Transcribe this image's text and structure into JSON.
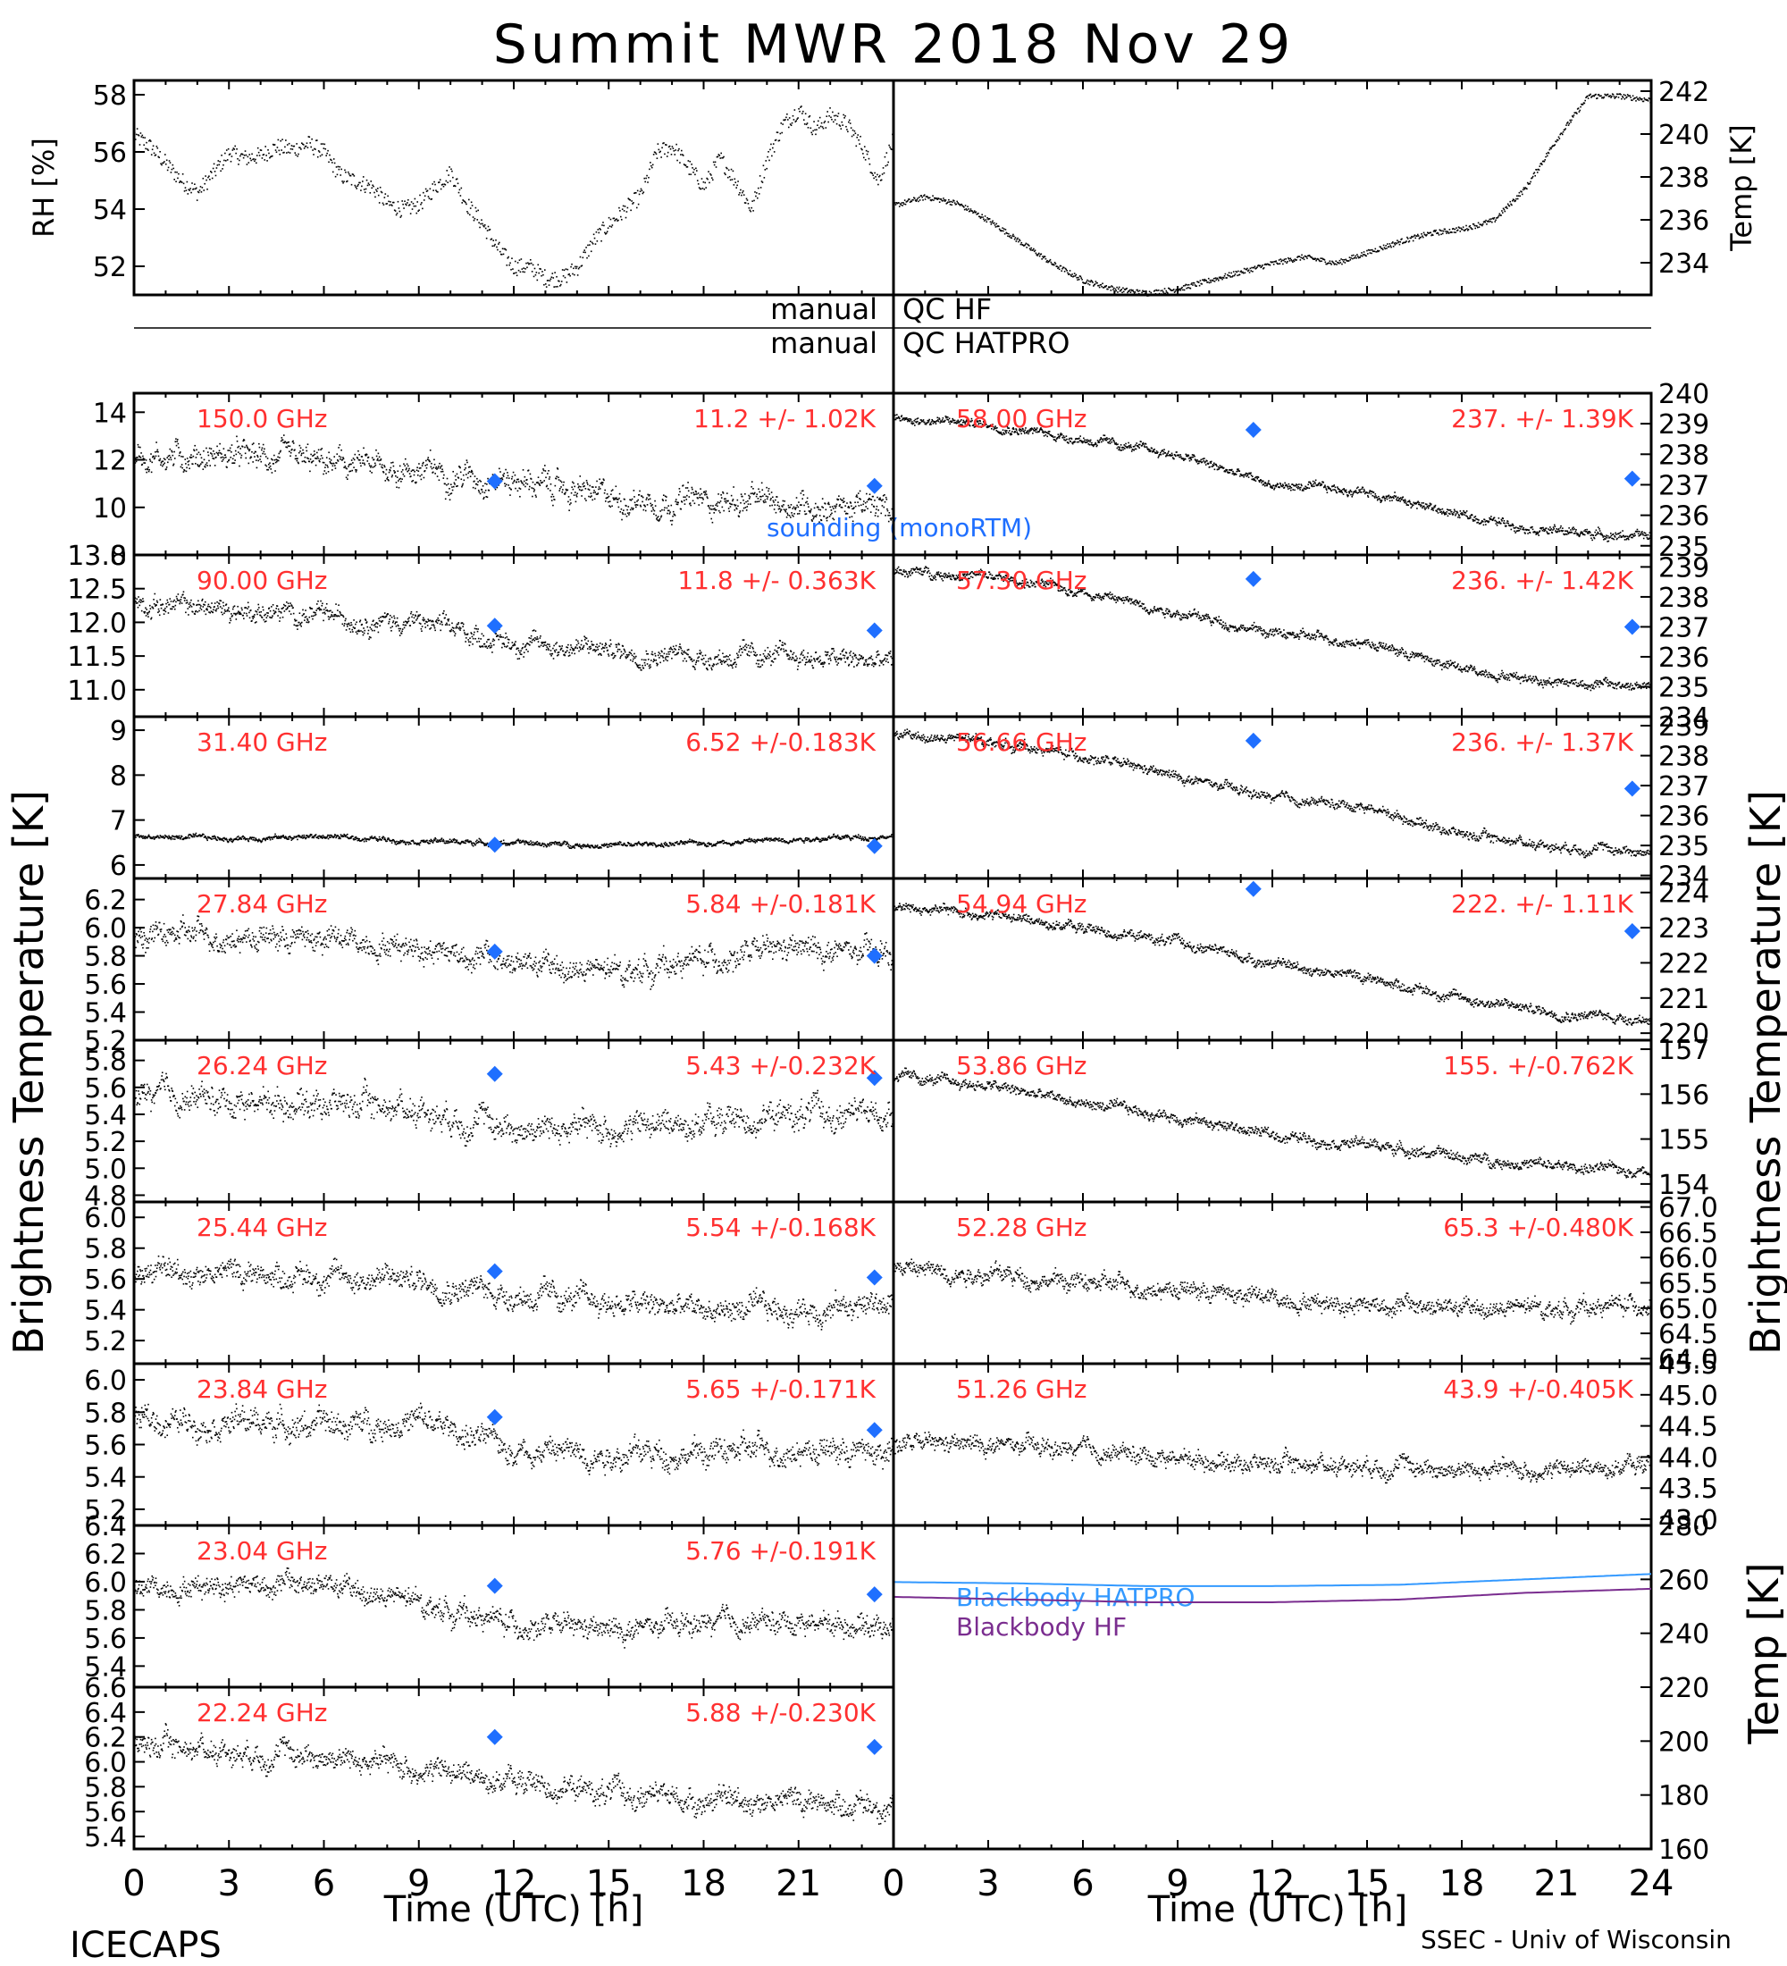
{
  "title": "Summit MWR 2018 Nov 29",
  "footer_left": "ICECAPS",
  "footer_right": "SSEC - Univ of Wisconsin",
  "x_axis": {
    "label": "Time (UTC) [h]",
    "left_ticks": [
      "0",
      "3",
      "6",
      "9",
      "12",
      "15",
      "18",
      "21"
    ],
    "right_ticks": [
      "0",
      "3",
      "6",
      "9",
      "12",
      "15",
      "18",
      "21",
      "24"
    ],
    "range": [
      0,
      24
    ]
  },
  "left_ylabel": "Brightness Temperature [K]",
  "right_ylabel": "Brightness Temperature [K]",
  "qc": {
    "left": [
      "manual",
      "manual"
    ],
    "right": [
      "QC HF",
      "QC HATPRO"
    ]
  },
  "colors": {
    "annotation": "#ff3030",
    "sounding": "#1f6fff",
    "hatpro": "#3399ff",
    "hf": "#7a2d8f",
    "data": "#000000"
  },
  "chart_data": [
    {
      "type": "scatter",
      "panel": "rh",
      "ylabel": "RH [%]",
      "ylim": [
        51,
        58.5
      ],
      "yticks": [
        "52",
        "54",
        "56",
        "58"
      ],
      "x": [
        0,
        0.5,
        1,
        1.5,
        2,
        2.5,
        3,
        3.5,
        4,
        4.5,
        5,
        5.5,
        6,
        6.5,
        7,
        7.5,
        8,
        8.5,
        9,
        9.5,
        10,
        10.5,
        11,
        11.5,
        12,
        12.5,
        13,
        13.5,
        14,
        14.5,
        15,
        15.5,
        16,
        16.5,
        17,
        17.5,
        18,
        18.5,
        19,
        19.5,
        20,
        20.5,
        21,
        21.5,
        22,
        22.5,
        23,
        23.5,
        24
      ],
      "values": [
        56.6,
        56.2,
        55.6,
        55.0,
        54.6,
        55.3,
        56.0,
        55.8,
        55.9,
        56.2,
        56.1,
        56.3,
        56.0,
        55.2,
        55.0,
        54.8,
        54.2,
        54.0,
        54.2,
        54.8,
        55.3,
        54.2,
        53.5,
        52.6,
        52.0,
        52.0,
        51.6,
        51.6,
        52.0,
        52.9,
        53.5,
        54.0,
        54.5,
        56.0,
        56.2,
        55.5,
        54.8,
        55.8,
        55.0,
        54.0,
        55.8,
        57.0,
        57.5,
        56.8,
        57.3,
        57.0,
        56.2,
        55.0,
        56.5
      ]
    },
    {
      "type": "line",
      "panel": "temp",
      "ylabel": "Temp [K]",
      "ylim": [
        232.5,
        242.5
      ],
      "yticks": [
        "234",
        "236",
        "238",
        "240",
        "242"
      ],
      "x": [
        0,
        1,
        2,
        3,
        4,
        5,
        6,
        7,
        8,
        9,
        10,
        11,
        12,
        13,
        14,
        15,
        16,
        17,
        18,
        19,
        20,
        21,
        22,
        23,
        24
      ],
      "values": [
        236.7,
        237.1,
        236.8,
        236.0,
        235.0,
        234.0,
        233.2,
        232.8,
        232.6,
        232.8,
        233.2,
        233.6,
        234.0,
        234.3,
        234.0,
        234.5,
        235.0,
        235.4,
        235.6,
        236.0,
        237.5,
        239.8,
        241.8,
        241.8,
        241.6
      ]
    },
    {
      "type": "scatter",
      "panel": "left",
      "row": 0,
      "freq": "150.0 GHz",
      "stats": "11.2 +/- 1.02K",
      "ylim": [
        8,
        14.8
      ],
      "yticks": [
        "8",
        "10",
        "12",
        "14"
      ],
      "noise": 0.7,
      "x": [
        0,
        3,
        6,
        9,
        12,
        15,
        18,
        21,
        24
      ],
      "values": [
        12.2,
        12.2,
        11.8,
        11.6,
        11.2,
        10.4,
        10.3,
        10.2,
        9.9
      ],
      "sounding": [
        [
          11.4,
          11.1
        ],
        [
          23.4,
          10.9
        ]
      ]
    },
    {
      "type": "scatter",
      "panel": "left",
      "row": 1,
      "freq": "90.00 GHz",
      "stats": "11.8 +/- 0.363K",
      "ylim": [
        10.6,
        13.0
      ],
      "yticks": [
        "11.0",
        "11.5",
        "12.0",
        "12.5",
        "13.0"
      ],
      "noise": 0.18,
      "x": [
        0,
        3,
        6,
        9,
        12,
        15,
        18,
        21,
        24
      ],
      "values": [
        12.3,
        12.2,
        12.1,
        12.0,
        11.7,
        11.6,
        11.5,
        11.5,
        11.4
      ],
      "sounding": [
        [
          11.4,
          11.95
        ],
        [
          23.4,
          11.88
        ]
      ]
    },
    {
      "type": "scatter",
      "panel": "left",
      "row": 2,
      "freq": "31.40 GHz",
      "stats": "6.52 +/-0.183K",
      "ylim": [
        5.7,
        9.3
      ],
      "yticks": [
        "6",
        "7",
        "8",
        "9"
      ],
      "noise": 0.07,
      "x": [
        0,
        3,
        6,
        9,
        12,
        15,
        18,
        21,
        24
      ],
      "values": [
        6.65,
        6.6,
        6.65,
        6.55,
        6.5,
        6.45,
        6.5,
        6.6,
        6.65
      ],
      "sounding": [
        [
          11.4,
          6.45
        ],
        [
          23.4,
          6.42
        ]
      ]
    },
    {
      "type": "scatter",
      "panel": "left",
      "row": 3,
      "freq": "27.84 GHz",
      "stats": "5.84 +/-0.181K",
      "ylim": [
        5.2,
        6.35
      ],
      "yticks": [
        "5.2",
        "5.4",
        "5.6",
        "5.8",
        "6.0",
        "6.2"
      ],
      "noise": 0.11,
      "x": [
        0,
        3,
        6,
        9,
        12,
        15,
        18,
        21,
        24
      ],
      "values": [
        5.95,
        5.95,
        5.92,
        5.88,
        5.75,
        5.68,
        5.78,
        5.85,
        5.8
      ],
      "sounding": [
        [
          11.4,
          5.83
        ],
        [
          23.4,
          5.8
        ]
      ]
    },
    {
      "type": "scatter",
      "panel": "left",
      "row": 4,
      "freq": "26.24 GHz",
      "stats": "5.43 +/-0.232K",
      "ylim": [
        4.75,
        5.95
      ],
      "yticks": [
        "4.8",
        "5.0",
        "5.2",
        "5.4",
        "5.6",
        "5.8"
      ],
      "noise": 0.13,
      "x": [
        0,
        3,
        6,
        9,
        12,
        15,
        18,
        21,
        24
      ],
      "values": [
        5.55,
        5.5,
        5.5,
        5.45,
        5.3,
        5.3,
        5.35,
        5.4,
        5.4
      ],
      "sounding": [
        [
          11.4,
          5.7
        ],
        [
          23.4,
          5.67
        ]
      ]
    },
    {
      "type": "scatter",
      "panel": "left",
      "row": 5,
      "freq": "25.44 GHz",
      "stats": "5.54 +/-0.168K",
      "ylim": [
        5.05,
        6.1
      ],
      "yticks": [
        "5.2",
        "5.4",
        "5.6",
        "5.8",
        "6.0"
      ],
      "noise": 0.1,
      "x": [
        0,
        3,
        6,
        9,
        12,
        15,
        18,
        21,
        24
      ],
      "values": [
        5.65,
        5.65,
        5.62,
        5.6,
        5.5,
        5.45,
        5.4,
        5.4,
        5.45
      ],
      "sounding": [
        [
          11.4,
          5.65
        ],
        [
          23.4,
          5.61
        ]
      ]
    },
    {
      "type": "scatter",
      "panel": "left",
      "row": 6,
      "freq": "23.84 GHz",
      "stats": "5.65 +/-0.171K",
      "ylim": [
        5.1,
        6.1
      ],
      "yticks": [
        "5.2",
        "5.4",
        "5.6",
        "5.8",
        "6.0"
      ],
      "noise": 0.1,
      "x": [
        0,
        3,
        6,
        9,
        12,
        15,
        18,
        21,
        24
      ],
      "values": [
        5.75,
        5.75,
        5.72,
        5.75,
        5.58,
        5.55,
        5.55,
        5.58,
        5.55
      ],
      "sounding": [
        [
          11.4,
          5.77
        ],
        [
          23.4,
          5.69
        ]
      ]
    },
    {
      "type": "scatter",
      "panel": "left",
      "row": 7,
      "freq": "23.04 GHz",
      "stats": "5.76 +/-0.191K",
      "ylim": [
        5.25,
        6.4
      ],
      "yticks": [
        "5.4",
        "5.6",
        "5.8",
        "6.0",
        "6.2",
        "6.4"
      ],
      "noise": 0.1,
      "x": [
        0,
        3,
        6,
        9,
        12,
        15,
        18,
        21,
        24
      ],
      "values": [
        5.95,
        6.0,
        5.98,
        5.85,
        5.7,
        5.65,
        5.7,
        5.72,
        5.7
      ],
      "sounding": [
        [
          11.4,
          5.97
        ],
        [
          23.4,
          5.91
        ]
      ]
    },
    {
      "type": "scatter",
      "panel": "left",
      "row": 8,
      "freq": "22.24 GHz",
      "stats": "5.88 +/-0.230K",
      "ylim": [
        5.3,
        6.6
      ],
      "yticks": [
        "5.4",
        "5.6",
        "5.8",
        "6.0",
        "6.2",
        "6.4",
        "6.6"
      ],
      "noise": 0.12,
      "x": [
        0,
        3,
        6,
        9,
        12,
        15,
        18,
        21,
        24
      ],
      "values": [
        6.15,
        6.1,
        6.05,
        5.95,
        5.85,
        5.75,
        5.7,
        5.7,
        5.65
      ],
      "sounding": [
        [
          11.4,
          6.2
        ],
        [
          23.4,
          6.12
        ]
      ]
    },
    {
      "type": "scatter",
      "panel": "right",
      "row": 0,
      "freq": "58.00 GHz",
      "stats": "237. +/- 1.39K",
      "ylim": [
        234.7,
        240
      ],
      "yticks": [
        "235",
        "236",
        "237",
        "238",
        "239",
        "240"
      ],
      "noise": 0.18,
      "x": [
        0,
        3,
        6,
        9,
        12,
        15,
        18,
        21,
        24
      ],
      "values": [
        239.2,
        239.0,
        238.5,
        238.0,
        237.0,
        236.8,
        236.0,
        235.5,
        235.3
      ],
      "sounding": [
        [
          11.4,
          238.8
        ],
        [
          23.4,
          237.2
        ]
      ]
    },
    {
      "type": "scatter",
      "panel": "right",
      "row": 1,
      "freq": "57.30 GHz",
      "stats": "236. +/- 1.42K",
      "ylim": [
        234,
        239.4
      ],
      "yticks": [
        "234",
        "235",
        "236",
        "237",
        "238",
        "239"
      ],
      "noise": 0.2,
      "x": [
        0,
        3,
        6,
        9,
        12,
        15,
        18,
        21,
        24
      ],
      "values": [
        238.9,
        238.7,
        238.2,
        237.5,
        236.8,
        236.5,
        235.6,
        235.2,
        235.0
      ],
      "sounding": [
        [
          11.4,
          238.6
        ],
        [
          23.4,
          237.0
        ]
      ]
    },
    {
      "type": "scatter",
      "panel": "right",
      "row": 2,
      "freq": "56.66 GHz",
      "stats": "236. +/- 1.37K",
      "ylim": [
        233.9,
        239.3
      ],
      "yticks": [
        "234",
        "235",
        "236",
        "237",
        "238",
        "239"
      ],
      "noise": 0.2,
      "x": [
        0,
        3,
        6,
        9,
        12,
        15,
        18,
        21,
        24
      ],
      "values": [
        238.7,
        238.5,
        238.0,
        237.3,
        236.6,
        236.3,
        235.4,
        235.0,
        234.8
      ],
      "sounding": [
        [
          11.4,
          238.5
        ],
        [
          23.4,
          236.9
        ]
      ]
    },
    {
      "type": "scatter",
      "panel": "right",
      "row": 3,
      "freq": "54.94 GHz",
      "stats": "222. +/- 1.11K",
      "ylim": [
        219.8,
        224.4
      ],
      "yticks": [
        "220",
        "221",
        "222",
        "223",
        "224"
      ],
      "noise": 0.18,
      "x": [
        0,
        3,
        6,
        9,
        12,
        15,
        18,
        21,
        24
      ],
      "values": [
        223.6,
        223.4,
        223.0,
        222.6,
        222.0,
        221.6,
        221.0,
        220.6,
        220.4
      ],
      "sounding": [
        [
          11.4,
          224.1
        ],
        [
          23.4,
          222.9
        ]
      ]
    },
    {
      "type": "scatter",
      "panel": "right",
      "row": 4,
      "freq": "53.86 GHz",
      "stats": "155. +/-0.762K",
      "ylim": [
        153.6,
        157.2
      ],
      "yticks": [
        "154",
        "155",
        "156",
        "157"
      ],
      "noise": 0.15,
      "x": [
        0,
        3,
        6,
        9,
        12,
        15,
        18,
        21,
        24
      ],
      "values": [
        156.4,
        156.2,
        155.8,
        155.5,
        155.1,
        154.9,
        154.6,
        154.4,
        154.3
      ],
      "sounding": []
    },
    {
      "type": "scatter",
      "panel": "right",
      "row": 5,
      "freq": "52.28 GHz",
      "stats": "65.3 +/-0.480K",
      "ylim": [
        63.9,
        67.1
      ],
      "yticks": [
        "64.0",
        "64.5",
        "65.0",
        "65.5",
        "66.0",
        "66.5",
        "67.0"
      ],
      "noise": 0.22,
      "x": [
        0,
        3,
        6,
        9,
        12,
        15,
        18,
        21,
        24
      ],
      "values": [
        65.8,
        65.7,
        65.5,
        65.4,
        65.2,
        65.1,
        65.0,
        65.0,
        65.1
      ],
      "sounding": []
    },
    {
      "type": "scatter",
      "panel": "right",
      "row": 6,
      "freq": "51.26 GHz",
      "stats": "43.9 +/-0.405K",
      "ylim": [
        42.9,
        45.5
      ],
      "yticks": [
        "43.0",
        "43.5",
        "44.0",
        "44.5",
        "45.0",
        "45.5"
      ],
      "noise": 0.18,
      "x": [
        0,
        3,
        6,
        9,
        12,
        15,
        18,
        21,
        24
      ],
      "values": [
        44.2,
        44.2,
        44.1,
        44.0,
        43.9,
        43.9,
        43.8,
        43.8,
        43.9
      ],
      "sounding": []
    },
    {
      "type": "line",
      "panel": "blackbody",
      "ylabel": "Temp [K]",
      "ylim": [
        160,
        280
      ],
      "yticks": [
        "160",
        "180",
        "200",
        "220",
        "240",
        "260",
        "280"
      ],
      "series": [
        {
          "name": "Blackbody HATPRO",
          "x": [
            0,
            4,
            8,
            12,
            16,
            20,
            24
          ],
          "values": [
            259,
            258.5,
            257.5,
            257.5,
            258,
            260,
            262
          ]
        },
        {
          "name": "Blackbody HF",
          "x": [
            0,
            4,
            8,
            12,
            16,
            20,
            24
          ],
          "values": [
            253.5,
            252.5,
            251.5,
            251.5,
            252.5,
            255,
            256.5
          ]
        }
      ]
    }
  ],
  "sounding_label": "sounding (monoRTM)"
}
